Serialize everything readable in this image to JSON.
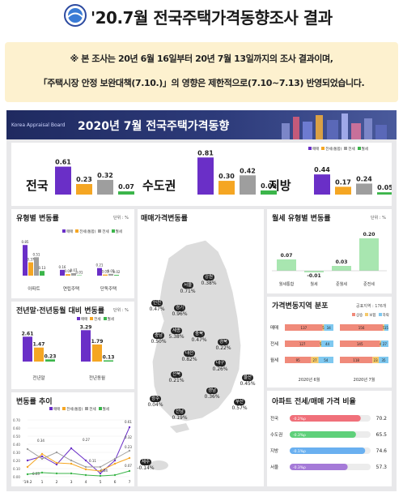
{
  "header": {
    "title": "'20.7월 전국주택가격동향조사 결과"
  },
  "notice": {
    "line1": "※ 본 조사는 20년 6월 16일부터 20년 7월 13일까지의 조사 결과이며,",
    "line2": "「주택시장 안정 보완대책(7.10.)」의 영향은 제한적으로(7.10~7.13) 반영되었습니다."
  },
  "banner": {
    "org": "Korea Appraisal Board",
    "title": "2020년 7월 전국주택가격동향"
  },
  "colors": {
    "sale": "#6a2fc7",
    "jeonse": "#f5a623",
    "wolse": "#9e9e9e",
    "monthly": "#3bb54a",
    "navy": "#1f2a60"
  },
  "summary": {
    "legend": [
      "매매",
      "전세(통합)",
      "전세",
      "월세"
    ],
    "regions": [
      {
        "name": "전국",
        "values": [
          "0.61",
          "0.23",
          "0.32",
          "0.07"
        ]
      },
      {
        "name": "수도권",
        "values": [
          "0.81",
          "0.30",
          "0.42",
          "0.09"
        ]
      },
      {
        "name": "지방",
        "values": [
          "0.44",
          "0.17",
          "0.24",
          "0.05"
        ]
      }
    ]
  },
  "by_type": {
    "title": "유형별 변동률",
    "unit": "단위 : %",
    "legend": [
      "매매",
      "전세(통합)",
      "전세",
      "월세"
    ],
    "categories": [
      "아파트",
      "연립주택",
      "단독주택"
    ],
    "values": [
      [
        "0.85",
        "0.37",
        "0.51",
        "0.13"
      ],
      [
        "0.16",
        "0.04",
        "0.07",
        "0.01"
      ],
      [
        "0.21",
        "0.03",
        "0.05",
        "0.02"
      ]
    ]
  },
  "yearend": {
    "title": "전년말·전년동월 대비 변동률",
    "unit": "단위 : %",
    "legend": [
      "매매",
      "전세",
      "월세"
    ],
    "categories": [
      "전년말",
      "전년동월"
    ],
    "values": [
      [
        "2.61",
        "1.47",
        "0.23"
      ],
      [
        "3.29",
        "1.79",
        "0.13"
      ]
    ]
  },
  "trend": {
    "title": "변동률 추이",
    "legend": [
      "매매",
      "전세(통합)",
      "전세",
      "월세"
    ],
    "x": [
      "'19.2",
      "1",
      "2",
      "3",
      "4",
      "5",
      "6",
      "7"
    ],
    "y_ticks": [
      "0.70",
      "0.60",
      "0.50",
      "0.40",
      "0.30",
      "0.20",
      "0.10",
      "0.00"
    ],
    "series": [
      {
        "name": "매매",
        "values": [
          0.2,
          0.25,
          0.15,
          0.35,
          0.2,
          0.04,
          0.2,
          0.61
        ]
      },
      {
        "name": "전세(통합)",
        "values": [
          0.12,
          0.28,
          0.17,
          0.16,
          0.09,
          0.07,
          0.16,
          0.23
        ]
      },
      {
        "name": "전세",
        "values": [
          0.34,
          0.22,
          0.3,
          0.2,
          0.12,
          0.12,
          0.22,
          0.32
        ]
      },
      {
        "name": "월세",
        "values": [
          0.03,
          0.05,
          0.04,
          0.04,
          0.02,
          0.01,
          0.02,
          0.07
        ]
      }
    ],
    "labels": [
      "0.61",
      "0.32",
      "0.23",
      "0.07",
      "0.27",
      "0.11",
      "0.04",
      "0.03",
      "0.34"
    ]
  },
  "map": {
    "title": "매매가격변동률",
    "regions": [
      {
        "name": "서울",
        "value": "0.71%"
      },
      {
        "name": "강원",
        "value": "0.38%"
      },
      {
        "name": "인천",
        "value": "0.47%"
      },
      {
        "name": "경기",
        "value": "0.96%"
      },
      {
        "name": "세종",
        "value": "5.38%"
      },
      {
        "name": "충북",
        "value": "0.47%"
      },
      {
        "name": "충남",
        "value": "0.50%"
      },
      {
        "name": "경북",
        "value": "0.22%"
      },
      {
        "name": "대전",
        "value": "0.82%"
      },
      {
        "name": "대구",
        "value": "0.26%"
      },
      {
        "name": "전북",
        "value": "0.21%"
      },
      {
        "name": "울산",
        "value": "0.45%"
      },
      {
        "name": "경남",
        "value": "0.36%"
      },
      {
        "name": "광주",
        "value": "0.04%"
      },
      {
        "name": "부산",
        "value": "0.57%"
      },
      {
        "name": "전남",
        "value": "0.19%"
      },
      {
        "name": "제주",
        "value": "-0.14%"
      }
    ]
  },
  "wolse_type": {
    "title": "월세 유형별 변동률",
    "unit": "단위 : %",
    "categories": [
      "월세통합",
      "월세",
      "준월세",
      "준전세"
    ],
    "values": [
      "0.07",
      "-0.01",
      "0.03",
      "0.20"
    ]
  },
  "dist": {
    "title": "가격변동지역 분포",
    "unit": "공표지역 : 176개",
    "legend": [
      "상승",
      "보합",
      "하락"
    ],
    "rows": [
      {
        "name": "매매",
        "june": [
          "137",
          "5",
          "34"
        ],
        "july": [
          "156",
          "5",
          "15"
        ]
      },
      {
        "name": "전세",
        "june": [
          "127",
          "5",
          "44"
        ],
        "july": [
          "145",
          "4",
          "27"
        ]
      },
      {
        "name": "월세",
        "june": [
          "95",
          "27",
          "54"
        ],
        "july": [
          "118",
          "23",
          "35"
        ]
      }
    ],
    "cols": [
      "2020년 6월",
      "2020년 7월"
    ]
  },
  "ratio": {
    "title": "아파트 전세/매매 가격 비율",
    "rows": [
      {
        "name": "전국",
        "change": "-0.2%p",
        "value": "70.2"
      },
      {
        "name": "수도권",
        "change": "-0.3%p",
        "value": "65.5"
      },
      {
        "name": "지방",
        "change": "-0.1%p",
        "value": "74.6"
      },
      {
        "name": "서울",
        "change": "-0.3%p",
        "value": "57.3"
      }
    ]
  }
}
